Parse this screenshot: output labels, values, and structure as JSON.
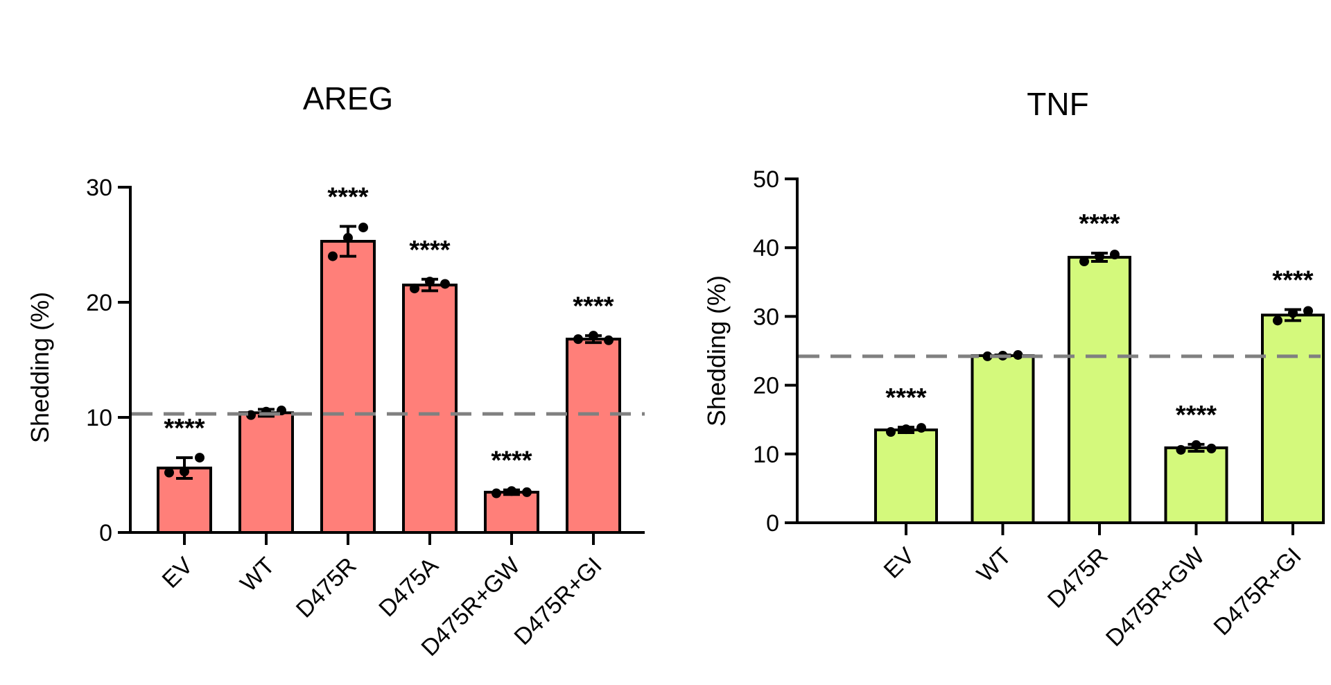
{
  "chart_data": [
    {
      "type": "bar",
      "title": "AREG",
      "ylabel": "Shedding (%)",
      "xlabel": "",
      "ylim": [
        0,
        30
      ],
      "yticks": [
        0,
        10,
        20,
        30
      ],
      "reference_line": 10.3,
      "bar_color": "#ff7f79",
      "categories": [
        "EV",
        "WT",
        "D475R",
        "D475A",
        "D475R+GW",
        "D475R+GI"
      ],
      "values": [
        5.6,
        10.4,
        25.3,
        21.5,
        3.5,
        16.8
      ],
      "error": [
        0.9,
        0.3,
        1.3,
        0.5,
        0.2,
        0.3
      ],
      "points": [
        [
          5.2,
          5.3,
          6.5
        ],
        [
          10.2,
          10.5,
          10.6
        ],
        [
          24.0,
          25.6,
          26.5
        ],
        [
          21.2,
          21.8,
          21.6
        ],
        [
          3.4,
          3.6,
          3.5
        ],
        [
          16.8,
          17.1,
          16.7
        ]
      ],
      "annotations": [
        "****",
        "",
        "****",
        "****",
        "****",
        "****"
      ]
    },
    {
      "type": "bar",
      "title": "TNF",
      "ylabel": "Shedding (%)",
      "xlabel": "",
      "ylim": [
        0,
        50
      ],
      "yticks": [
        0,
        10,
        20,
        30,
        40,
        50
      ],
      "reference_line": 24.2,
      "bar_color": "#d4f97c",
      "categories": [
        "EV",
        "WT",
        "D475R",
        "D475R+GW",
        "D475R+GI"
      ],
      "values": [
        13.5,
        24.3,
        38.6,
        10.9,
        30.2
      ],
      "error": [
        0.4,
        0.1,
        0.6,
        0.5,
        0.8
      ],
      "points": [
        [
          13.2,
          13.6,
          13.8
        ],
        [
          24.2,
          24.3,
          24.4
        ],
        [
          38.0,
          38.7,
          39.0
        ],
        [
          10.6,
          11.3,
          10.8
        ],
        [
          29.4,
          30.5,
          30.8
        ]
      ],
      "annotations": [
        "****",
        "",
        "****",
        "****",
        "****"
      ]
    }
  ]
}
